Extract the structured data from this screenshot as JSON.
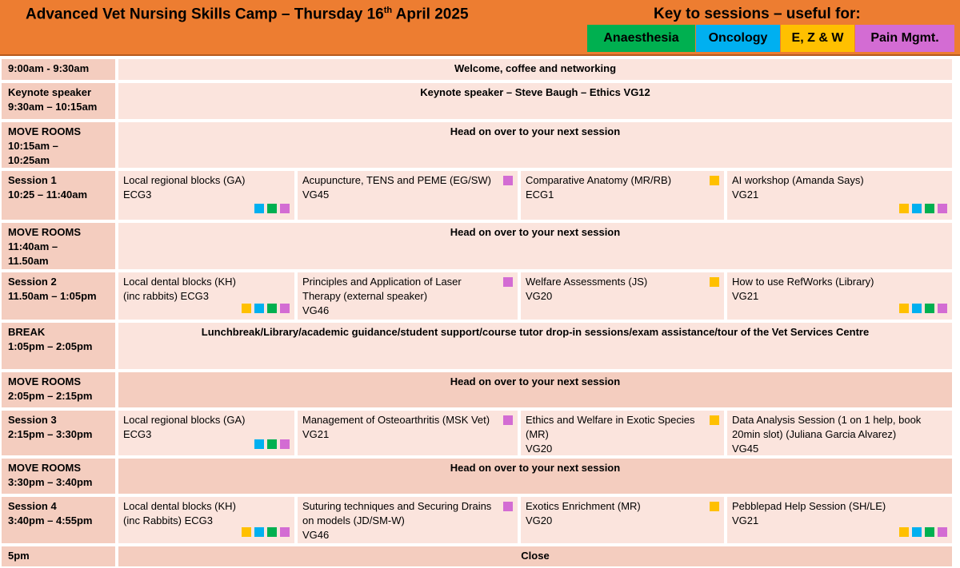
{
  "header": {
    "title_main": "Advanced Vet Nursing Skills Camp – Thursday 16",
    "title_sup": "th",
    "title_end": " April 2025",
    "key_title": "Key to sessions – useful for:"
  },
  "colors": {
    "anaesthesia": "#00B050",
    "oncology": "#00B0F0",
    "ezw": "#FFC000",
    "pain": "#D36CD3"
  },
  "key": [
    {
      "id": "anaesthesia",
      "label": "Anaesthesia"
    },
    {
      "id": "oncology",
      "label": "Oncology"
    },
    {
      "id": "ezw",
      "label": "E, Z & W"
    },
    {
      "id": "pain",
      "label": "Pain Mgmt."
    }
  ],
  "rows": [
    {
      "time": "9:00am - 9:30am",
      "span": "Welcome, coffee and networking"
    },
    {
      "time": "Keynote speaker\n9:30am – 10:15am",
      "span": "Keynote speaker – Steve Baugh – Ethics VG12"
    },
    {
      "time": "MOVE ROOMS\n10:15am –\n10:25am",
      "span": "Head on over to your next session"
    },
    {
      "time": "Session 1\n10:25 – 11:40am",
      "sessions": [
        {
          "title": "Local regional blocks (GA)",
          "room": "ECG3",
          "tags": [
            "oncology",
            "anaesthesia",
            "pain"
          ]
        },
        {
          "title": "Acupuncture, TENS and PEME (EG/SW)",
          "room": "VG45",
          "tags": [
            "pain"
          ]
        },
        {
          "title": "Comparative Anatomy (MR/RB)",
          "room": " ECG1",
          "tags": [
            "ezw"
          ]
        },
        {
          "title": "AI workshop (Amanda Says)",
          "room": "VG21",
          "tags": [
            "ezw",
            "oncology",
            "anaesthesia",
            "pain"
          ]
        }
      ]
    },
    {
      "time": "MOVE ROOMS\n11:40am –\n11.50am",
      "span": "Head on over to your next session"
    },
    {
      "time": "Session 2\n11.50am – 1:05pm",
      "sessions": [
        {
          "title": "Local dental blocks (KH)",
          "room": "(inc rabbits) ECG3",
          "tags": [
            "ezw",
            "oncology",
            "anaesthesia",
            "pain"
          ]
        },
        {
          "title": "Principles and Application of Laser Therapy (external speaker)",
          "room": "VG46",
          "tags": [
            "pain"
          ]
        },
        {
          "title": "Welfare Assessments (JS)",
          "room": "VG20",
          "tags": [
            "ezw"
          ]
        },
        {
          "title": "How to use RefWorks (Library)",
          "room": "VG21",
          "tags": [
            "ezw",
            "oncology",
            "anaesthesia",
            "pain"
          ]
        }
      ]
    },
    {
      "time": "BREAK\n1:05pm – 2:05pm",
      "span": "Lunchbreak/Library/academic guidance/student support/course tutor drop-in sessions/exam assistance/tour of the Vet Services Centre"
    },
    {
      "time": "MOVE ROOMS\n2:05pm – 2:15pm",
      "span": "Head on over to your next session"
    },
    {
      "time": "Session 3\n2:15pm – 3:30pm",
      "sessions": [
        {
          "title": "Local regional blocks (GA)",
          "room": "ECG3",
          "tags": [
            "oncology",
            "anaesthesia",
            "pain"
          ]
        },
        {
          "title": "Management of Osteoarthritis (MSK Vet)",
          "room": "VG21",
          "tags": [
            "pain"
          ]
        },
        {
          "title": "Ethics and Welfare in Exotic Species (MR)",
          "room": "VG20",
          "tags": [
            "ezw"
          ]
        },
        {
          "title": "Data Analysis Session (1 on 1 help, book 20min slot) (Juliana Garcia Alvarez)",
          "room": "VG45",
          "tags": []
        }
      ]
    },
    {
      "time": "MOVE ROOMS\n3:30pm – 3:40pm",
      "span": "Head on over to your next session"
    },
    {
      "time": "Session 4\n3:40pm – 4:55pm",
      "sessions": [
        {
          "title": "Local dental blocks (KH)",
          "room": "(inc Rabbits) ECG3",
          "tags": [
            "ezw",
            "oncology",
            "anaesthesia",
            "pain"
          ]
        },
        {
          "title": "Suturing techniques and Securing Drains on models (JD/SM-W)",
          "room": "VG46",
          "tags": [
            "pain"
          ]
        },
        {
          "title": "Exotics Enrichment (MR)",
          "room": "VG20",
          "tags": [
            "ezw"
          ]
        },
        {
          "title": "Pebblepad Help Session (SH/LE)",
          "room": "VG21",
          "tags": [
            "ezw",
            "oncology",
            "anaesthesia",
            "pain"
          ]
        }
      ]
    },
    {
      "time": "5pm",
      "span": "Close"
    }
  ]
}
